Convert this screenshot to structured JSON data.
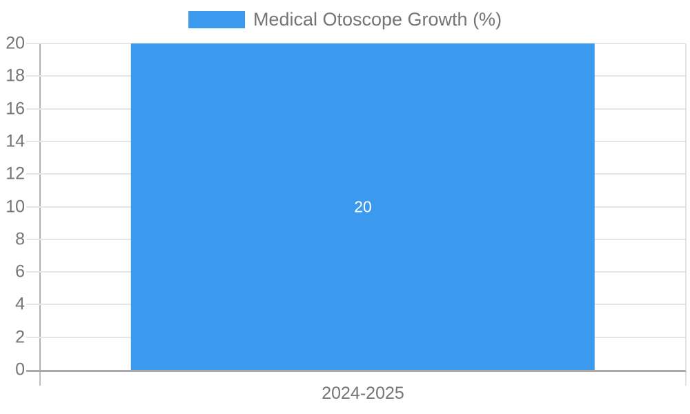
{
  "legend": {
    "label": "Medical Otoscope Growth (%)"
  },
  "colors": {
    "bar": "#3B99EE",
    "axis_text": "#757575",
    "gridline": "#e6e6e6",
    "axis_line": "#b0b0b0",
    "baseline": "#a8a8a8",
    "bar_value_text": "#ffffff"
  },
  "chart_data": {
    "type": "bar",
    "title": "Medical Otoscope Growth (%)",
    "categories": [
      "2024-2025"
    ],
    "series": [
      {
        "name": "Medical Otoscope Growth (%)",
        "values": [
          20
        ]
      }
    ],
    "values": [
      20
    ],
    "bar_labels": [
      "20"
    ],
    "xlabel": "",
    "ylabel": "",
    "ylim": [
      0,
      20
    ],
    "ytick_interval": 2,
    "yticks": [
      0,
      2,
      4,
      6,
      8,
      10,
      12,
      14,
      16,
      18,
      20
    ],
    "grid": true,
    "legend_position": "top-center",
    "bar_color": "#3B99EE"
  }
}
